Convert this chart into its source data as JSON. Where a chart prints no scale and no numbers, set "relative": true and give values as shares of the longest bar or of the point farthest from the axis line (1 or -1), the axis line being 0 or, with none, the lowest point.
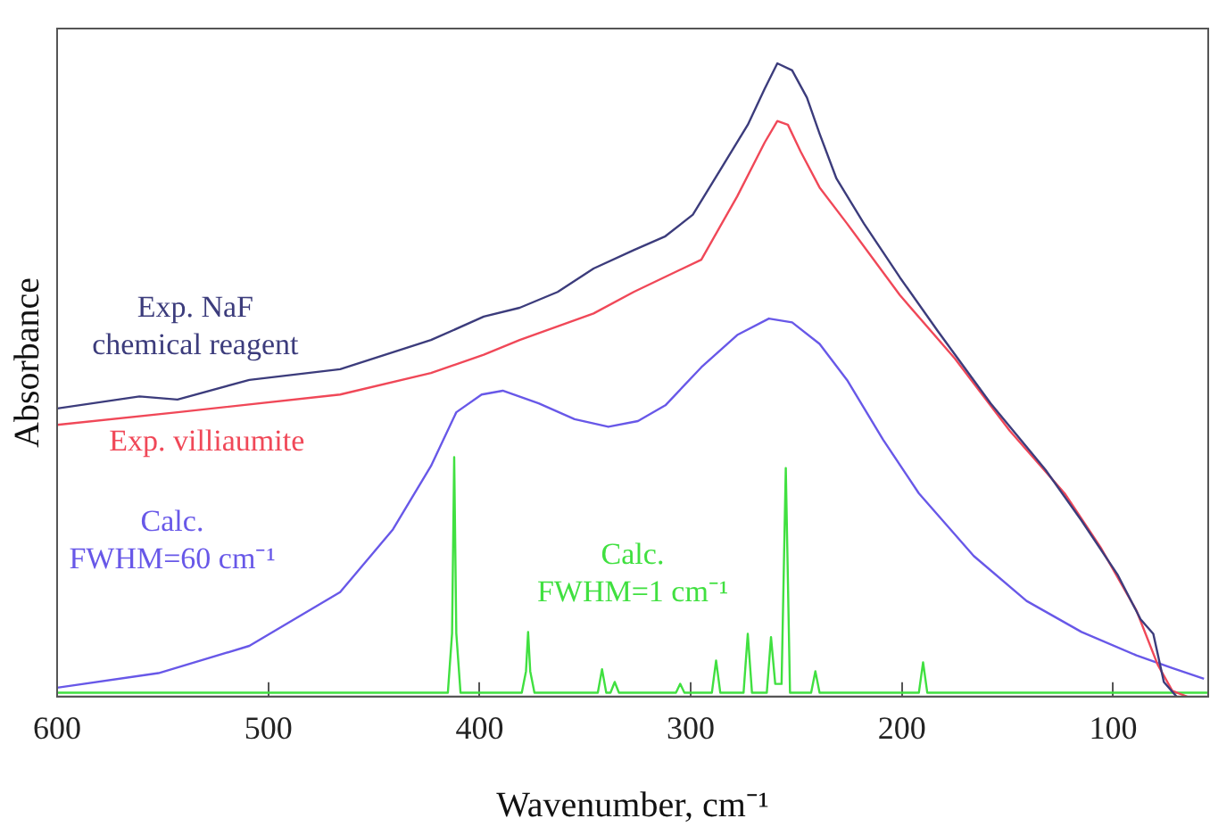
{
  "chart_data": {
    "type": "line",
    "relative": true,
    "xlabel": "Wavenumber, cm⁻¹",
    "ylabel": "Absorbance",
    "xlim": [
      600,
      55
    ],
    "xticks": [
      600,
      500,
      400,
      300,
      200,
      100
    ],
    "grid": false,
    "legend": false,
    "marker": "none",
    "line_style": "solid",
    "tick_labels": "x",
    "series": [
      {
        "name": "Exp. NaF chemical reagent",
        "color": "#3c3c7c",
        "x": [
          600,
          561,
          543,
          509,
          466,
          423,
          398,
          381,
          363,
          346,
          327,
          312,
          299,
          286,
          273,
          265,
          259,
          252,
          245,
          239,
          231,
          218,
          201,
          183,
          158,
          132,
          115,
          98,
          87,
          81,
          76,
          70
        ],
        "values": [
          0.455,
          0.474,
          0.469,
          0.5,
          0.517,
          0.563,
          0.6,
          0.614,
          0.639,
          0.676,
          0.705,
          0.727,
          0.761,
          0.832,
          0.903,
          0.96,
          1.0,
          0.989,
          0.946,
          0.889,
          0.818,
          0.747,
          0.662,
          0.577,
          0.463,
          0.358,
          0.278,
          0.193,
          0.122,
          0.099,
          0.023,
          0.0
        ]
      },
      {
        "name": "Exp. villiaumite",
        "color": "#f04858",
        "x": [
          600,
          543,
          466,
          423,
          398,
          381,
          346,
          327,
          295,
          278,
          265,
          259,
          254,
          248,
          239,
          226,
          201,
          175,
          149,
          123,
          106,
          89,
          79,
          72,
          65
        ],
        "values": [
          0.429,
          0.449,
          0.477,
          0.511,
          0.54,
          0.563,
          0.605,
          0.639,
          0.69,
          0.79,
          0.875,
          0.909,
          0.903,
          0.861,
          0.804,
          0.747,
          0.634,
          0.534,
          0.42,
          0.321,
          0.236,
          0.136,
          0.051,
          0.009,
          0.0
        ]
      },
      {
        "name": "Calc. FWHM=60 cm⁻¹",
        "color": "#6858e8",
        "x": [
          600,
          552,
          509,
          466,
          441,
          423,
          411,
          399,
          389,
          372,
          355,
          339,
          325,
          312,
          295,
          278,
          263,
          252,
          239,
          226,
          209,
          192,
          166,
          141,
          115,
          89,
          72,
          57
        ],
        "values": [
          0.014,
          0.037,
          0.08,
          0.165,
          0.264,
          0.364,
          0.449,
          0.477,
          0.483,
          0.463,
          0.438,
          0.426,
          0.435,
          0.46,
          0.52,
          0.571,
          0.597,
          0.591,
          0.557,
          0.5,
          0.406,
          0.321,
          0.222,
          0.151,
          0.102,
          0.065,
          0.045,
          0.028
        ]
      },
      {
        "name": "Calc. FWHM=1 cm⁻¹",
        "color": "#40e040",
        "x": [
          600,
          415,
          413,
          412,
          411,
          409,
          380,
          378,
          377,
          376,
          374,
          344,
          342,
          340,
          338,
          336,
          334,
          307,
          305,
          303,
          290,
          288,
          286,
          275,
          273,
          271,
          264,
          262,
          260,
          257,
          255,
          253,
          243,
          241,
          239,
          192,
          190,
          188,
          55
        ],
        "values": [
          0.006,
          0.006,
          0.1,
          0.378,
          0.1,
          0.006,
          0.006,
          0.04,
          0.102,
          0.04,
          0.006,
          0.006,
          0.043,
          0.006,
          0.006,
          0.023,
          0.006,
          0.006,
          0.02,
          0.006,
          0.006,
          0.057,
          0.006,
          0.006,
          0.099,
          0.006,
          0.006,
          0.094,
          0.02,
          0.02,
          0.361,
          0.006,
          0.006,
          0.04,
          0.006,
          0.006,
          0.054,
          0.006,
          0.006
        ]
      }
    ]
  }
}
